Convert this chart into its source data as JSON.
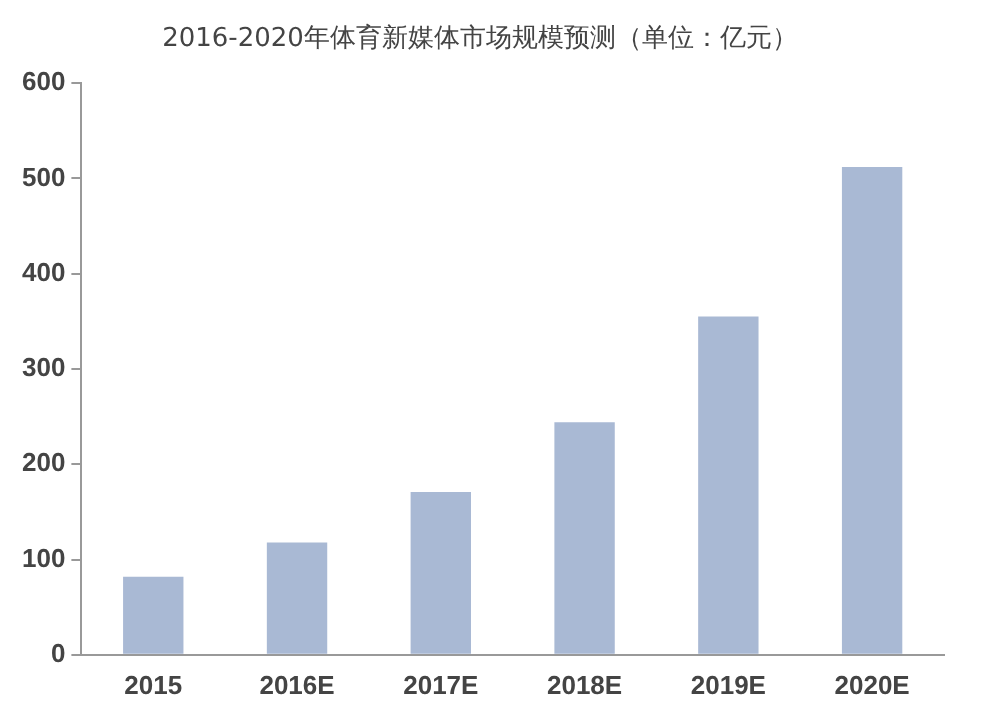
{
  "chart_data": {
    "type": "bar",
    "title": "2016-2020年体育新媒体市场规模预测（单位：亿元）",
    "categories": [
      "2015",
      "2016E",
      "2017E",
      "2018E",
      "2019E",
      "2020E"
    ],
    "values": [
      82,
      118,
      171,
      244,
      355,
      512
    ],
    "color": "#a9b9d4",
    "ylim": [
      0,
      600
    ],
    "yticks": [
      0,
      100,
      200,
      300,
      400,
      500,
      600
    ],
    "grid": false
  }
}
